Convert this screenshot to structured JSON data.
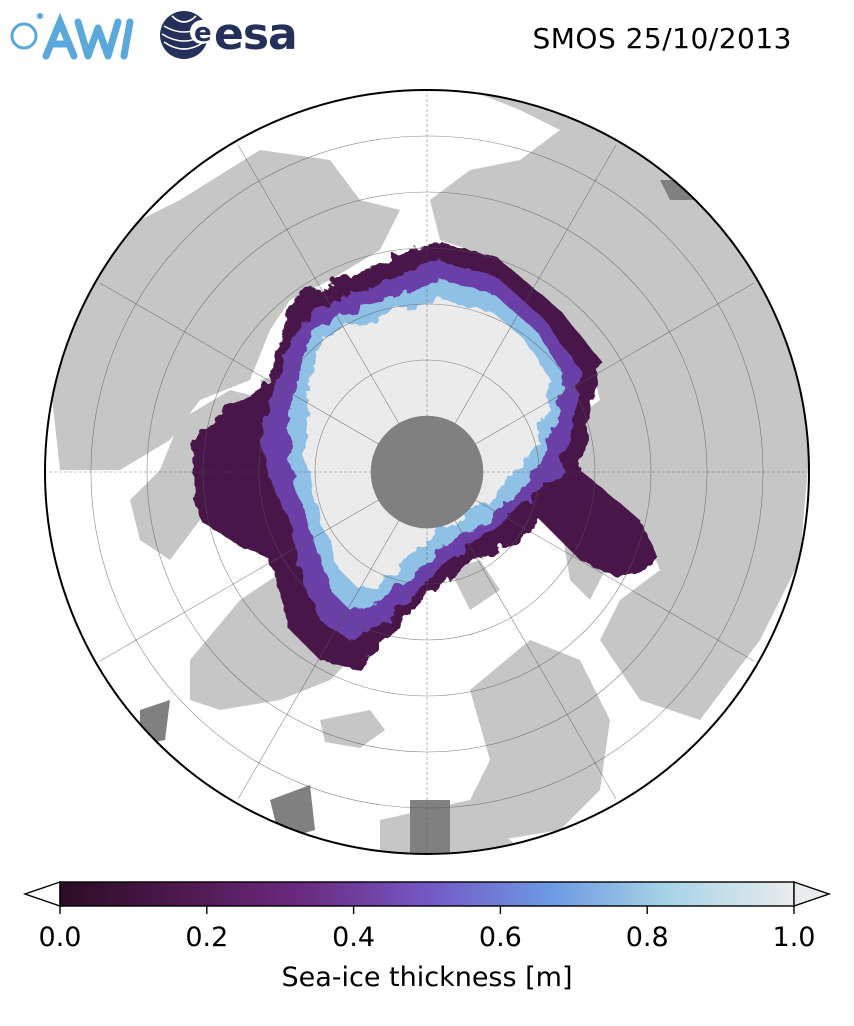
{
  "header": {
    "title": "SMOS 25/10/2013",
    "logo_awi": "AWI",
    "logo_esa": "esa"
  },
  "map": {
    "projection": "north-polar-stereographic",
    "colors": {
      "land": "#c6c6c6",
      "ocean": "#ffffff",
      "thick_ice": "#ebebeb",
      "pole_hole": "#808080",
      "graticule": "#555555"
    }
  },
  "colorbar": {
    "label": "Sea-ice thickness [m]",
    "min": 0.0,
    "max": 1.0,
    "ticks": [
      "0.0",
      "0.2",
      "0.4",
      "0.6",
      "0.8",
      "1.0"
    ],
    "extend": "both",
    "colormap": [
      "#2a0c22",
      "#4f1a50",
      "#6a2a7f",
      "#7458c6",
      "#6d99e3",
      "#a8d4e6",
      "#e8ecec"
    ]
  }
}
